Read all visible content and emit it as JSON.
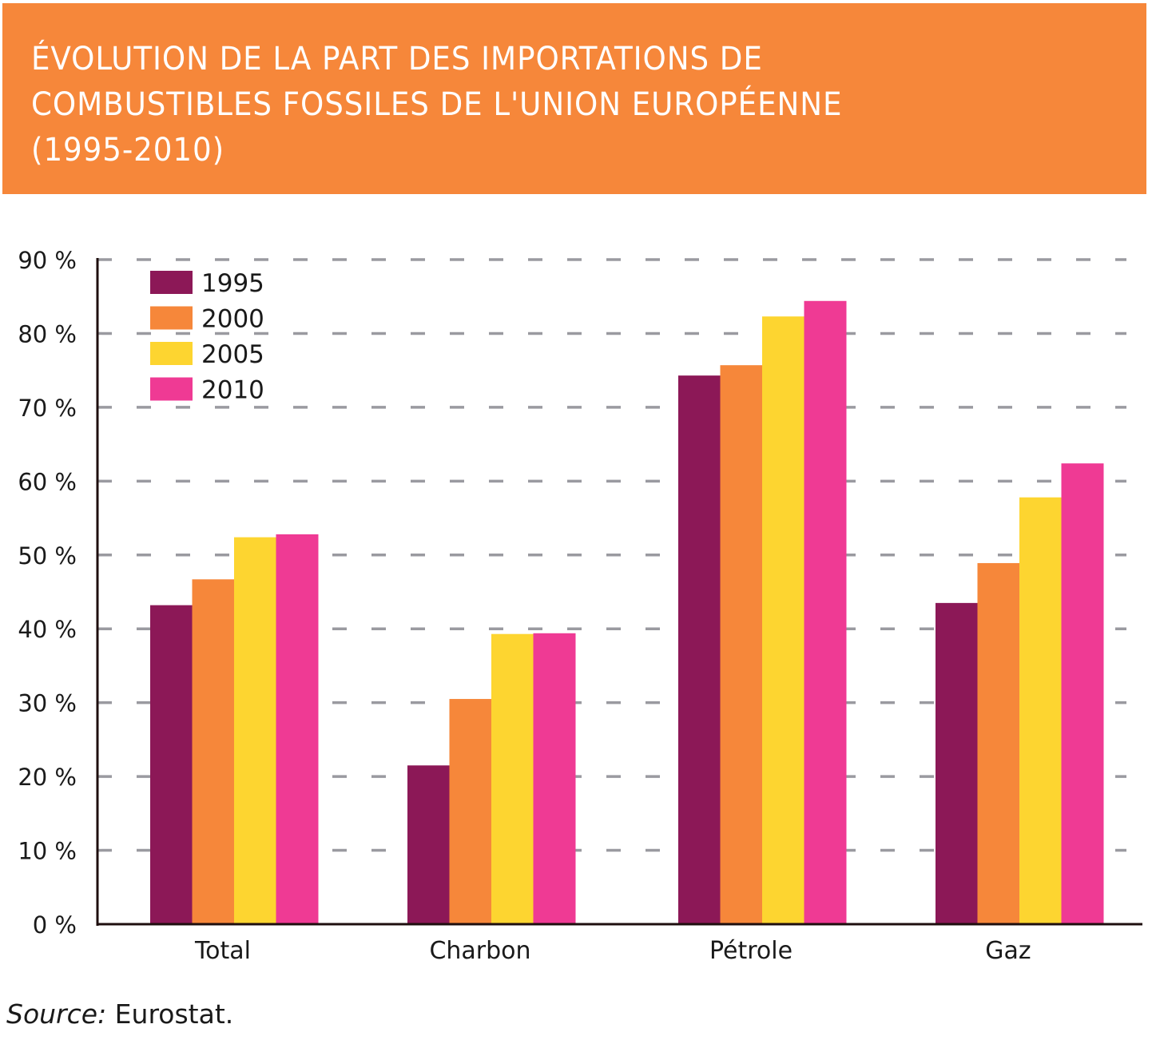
{
  "title": "ÉVOLUTION DE LA PART DES IMPORTATIONS DE COMBUSTIBLES FOSSILES DE L'UNION EUROPÉENNE (1995-2010)",
  "title_lines": [
    "ÉVOLUTION DE LA PART DES IMPORTATIONS DE",
    "COMBUSTIBLES FOSSILES DE L'UNION EUROPÉENNE",
    "(1995-2010)"
  ],
  "source": {
    "label": "Source:",
    "text": " Eurostat."
  },
  "colors": {
    "header_bg": "#f6873a",
    "grid": "#9a9aa0",
    "axis": "#1e0e0e"
  },
  "chart_data": {
    "type": "bar",
    "title": "ÉVOLUTION DE LA PART DES IMPORTATIONS DE COMBUSTIBLES FOSSILES DE L'UNION EUROPÉENNE (1995-2010)",
    "xlabel": "",
    "ylabel": "",
    "ylim": [
      0,
      90
    ],
    "yticks": [
      0,
      10,
      20,
      30,
      40,
      50,
      60,
      70,
      80,
      90
    ],
    "ytick_labels": [
      "0 %",
      "10 %",
      "20 %",
      "30 %",
      "40 %",
      "50 %",
      "60 %",
      "70 %",
      "80 %",
      "90 %"
    ],
    "grid": "horizontal dashed",
    "legend_position": "top-left",
    "categories": [
      "Total",
      "Charbon",
      "Pétrole",
      "Gaz"
    ],
    "series": [
      {
        "name": "1995",
        "color": "#8c1857",
        "values": [
          43.2,
          21.5,
          74.3,
          43.5
        ]
      },
      {
        "name": "2000",
        "color": "#f6873a",
        "values": [
          46.7,
          30.5,
          75.7,
          48.9
        ]
      },
      {
        "name": "2005",
        "color": "#fdd530",
        "values": [
          52.4,
          39.3,
          82.3,
          57.8
        ]
      },
      {
        "name": "2010",
        "color": "#ef3a94",
        "values": [
          52.8,
          39.4,
          84.4,
          62.4
        ]
      }
    ]
  }
}
